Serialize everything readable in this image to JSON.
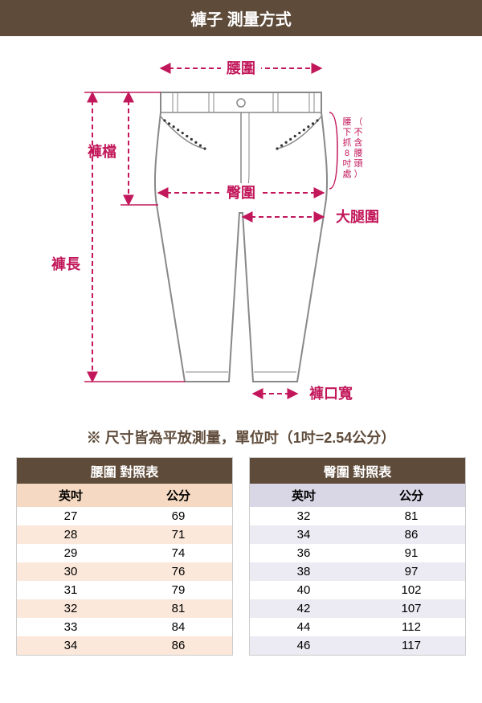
{
  "colors": {
    "title_bg": "#5f4b3a",
    "title_fg": "#ffffff",
    "measure": "#c2185b",
    "outline": "#888888",
    "note_fg": "#5f4b3a",
    "table_title_bg": "#5f4b3a",
    "table_title_fg": "#ffffff",
    "waist_head_bg": "#f5d9c2",
    "waist_alt_bg": "#fbe8da",
    "hip_head_bg": "#d9d6e5",
    "hip_alt_bg": "#eceaf2",
    "row_bg": "#ffffff",
    "border": "#cccccc"
  },
  "title": "褲子 測量方式",
  "diagram": {
    "labels": {
      "waist": "腰圍",
      "rise": "褲檔",
      "hip": "臀圍",
      "thigh": "大腿圍",
      "length": "褲長",
      "hem": "褲口寬",
      "hip_note1": "腰下抓8吋處",
      "hip_note2": "（不含腰頭）"
    }
  },
  "note": "※ 尺寸皆為平放測量，單位吋（1吋=2.54公分）",
  "tables": {
    "waist": {
      "title": "腰圍 對照表",
      "columns": [
        "英吋",
        "公分"
      ],
      "rows": [
        [
          "27",
          "69"
        ],
        [
          "28",
          "71"
        ],
        [
          "29",
          "74"
        ],
        [
          "30",
          "76"
        ],
        [
          "31",
          "79"
        ],
        [
          "32",
          "81"
        ],
        [
          "33",
          "84"
        ],
        [
          "34",
          "86"
        ]
      ]
    },
    "hip": {
      "title": "臀圍 對照表",
      "columns": [
        "英吋",
        "公分"
      ],
      "rows": [
        [
          "32",
          "81"
        ],
        [
          "34",
          "86"
        ],
        [
          "36",
          "91"
        ],
        [
          "38",
          "97"
        ],
        [
          "40",
          "102"
        ],
        [
          "42",
          "107"
        ],
        [
          "44",
          "112"
        ],
        [
          "46",
          "117"
        ]
      ]
    }
  }
}
